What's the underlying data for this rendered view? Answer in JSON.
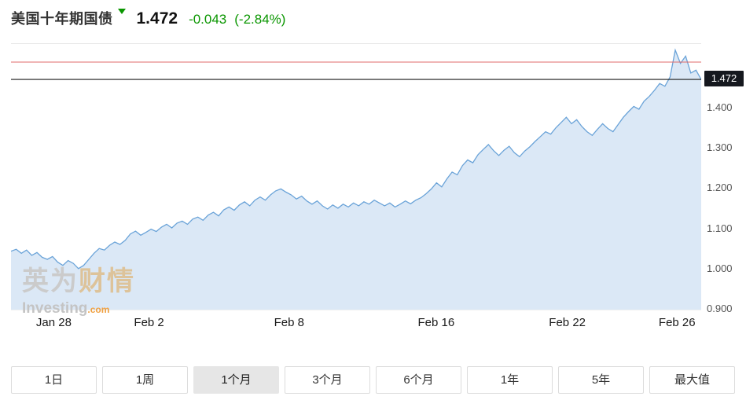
{
  "header": {
    "title": "美国十年期国债",
    "direction": "down",
    "value": "1.472",
    "change": "-0.043",
    "change_pct": "(-2.84%)"
  },
  "watermark": {
    "cn_gray": "英为",
    "cn_gold": "财情",
    "en": "Investing",
    "tld": ".com"
  },
  "price_badge": {
    "label": "1.472"
  },
  "colors": {
    "line": "#6aa3d8",
    "area": "#dbe8f6",
    "prev_close_line": "#e26b6b",
    "last_price_line": "#1a1a1a",
    "change_green": "#0a9600",
    "badge_bg": "#15181e"
  },
  "chart_data": {
    "type": "area",
    "title": "美国十年期国债 1个月",
    "ylim": [
      0.9,
      1.56
    ],
    "last_price": 1.472,
    "prev_close": 1.515,
    "grid": false,
    "y_ticks": [
      {
        "label": "1.400",
        "value": 1.4
      },
      {
        "label": "1.300",
        "value": 1.3
      },
      {
        "label": "1.200",
        "value": 1.2
      },
      {
        "label": "1.100",
        "value": 1.1
      },
      {
        "label": "1.000",
        "value": 1.0
      },
      {
        "label": "0.900",
        "value": 0.9
      }
    ],
    "x_ticks": [
      {
        "label": "Jan 28",
        "pos": 0.062
      },
      {
        "label": "Feb 2",
        "pos": 0.2
      },
      {
        "label": "Feb 8",
        "pos": 0.403
      },
      {
        "label": "Feb 16",
        "pos": 0.616
      },
      {
        "label": "Feb 22",
        "pos": 0.806
      },
      {
        "label": "Feb 26",
        "pos": 0.965
      }
    ],
    "values": [
      1.045,
      1.05,
      1.04,
      1.048,
      1.035,
      1.042,
      1.03,
      1.025,
      1.032,
      1.018,
      1.01,
      1.022,
      1.015,
      1.002,
      1.01,
      1.025,
      1.04,
      1.052,
      1.048,
      1.06,
      1.068,
      1.062,
      1.072,
      1.088,
      1.095,
      1.085,
      1.092,
      1.1,
      1.094,
      1.105,
      1.112,
      1.103,
      1.115,
      1.12,
      1.112,
      1.125,
      1.13,
      1.122,
      1.135,
      1.142,
      1.133,
      1.148,
      1.155,
      1.147,
      1.16,
      1.168,
      1.158,
      1.172,
      1.18,
      1.172,
      1.185,
      1.195,
      1.2,
      1.192,
      1.185,
      1.175,
      1.182,
      1.17,
      1.162,
      1.17,
      1.158,
      1.15,
      1.16,
      1.152,
      1.162,
      1.155,
      1.165,
      1.158,
      1.168,
      1.162,
      1.172,
      1.165,
      1.158,
      1.165,
      1.155,
      1.162,
      1.17,
      1.163,
      1.172,
      1.178,
      1.188,
      1.2,
      1.215,
      1.205,
      1.225,
      1.242,
      1.235,
      1.258,
      1.272,
      1.265,
      1.285,
      1.298,
      1.31,
      1.295,
      1.283,
      1.296,
      1.306,
      1.29,
      1.28,
      1.294,
      1.305,
      1.318,
      1.33,
      1.342,
      1.336,
      1.352,
      1.365,
      1.378,
      1.362,
      1.372,
      1.355,
      1.342,
      1.333,
      1.348,
      1.362,
      1.35,
      1.342,
      1.36,
      1.378,
      1.392,
      1.405,
      1.398,
      1.418,
      1.43,
      1.445,
      1.462,
      1.455,
      1.478,
      1.545,
      1.512,
      1.53,
      1.488,
      1.495,
      1.472
    ]
  },
  "tabs": [
    {
      "label": "1日",
      "active": false
    },
    {
      "label": "1周",
      "active": false
    },
    {
      "label": "1个月",
      "active": true
    },
    {
      "label": "3个月",
      "active": false
    },
    {
      "label": "6个月",
      "active": false
    },
    {
      "label": "1年",
      "active": false
    },
    {
      "label": "5年",
      "active": false
    },
    {
      "label": "最大值",
      "active": false
    }
  ]
}
